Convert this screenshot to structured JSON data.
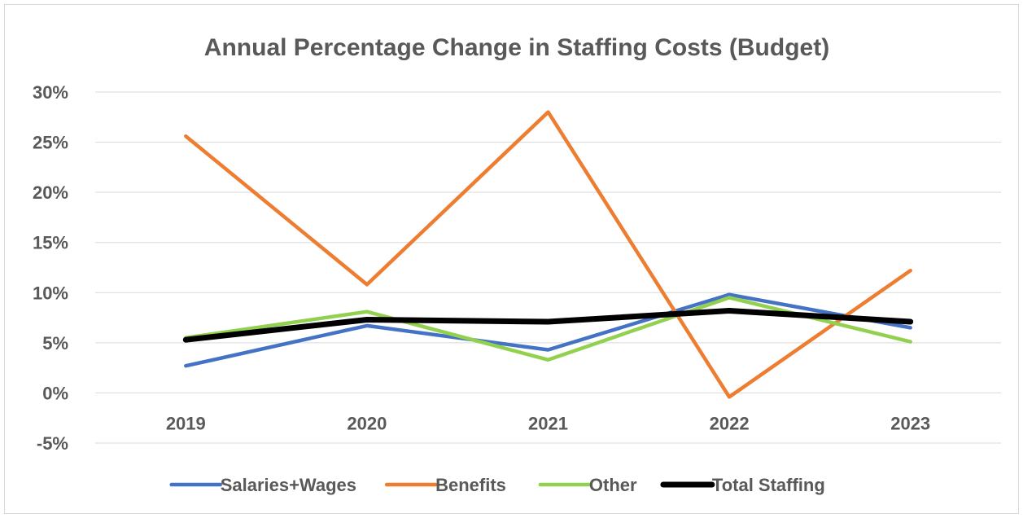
{
  "chart_data": {
    "type": "line",
    "title": "Annual Percentage Change in Staffing Costs (Budget)",
    "xlabel": "",
    "ylabel": "",
    "categories": [
      "2019",
      "2020",
      "2021",
      "2022",
      "2023"
    ],
    "ylim": [
      -5,
      30
    ],
    "ytick_values": [
      -5,
      0,
      5,
      10,
      15,
      20,
      25,
      30
    ],
    "ytick_labels": [
      "-5%",
      "0%",
      "5%",
      "10%",
      "15%",
      "20%",
      "25%",
      "30%"
    ],
    "grid": true,
    "legend_position": "bottom",
    "series": [
      {
        "name": "Salaries+Wages",
        "color": "#4472C4",
        "values": [
          2.7,
          6.7,
          4.3,
          9.8,
          6.5
        ]
      },
      {
        "name": "Benefits",
        "color": "#ED7D31",
        "values": [
          25.6,
          10.8,
          28.0,
          -0.4,
          12.2
        ]
      },
      {
        "name": "Other",
        "color": "#92D050",
        "values": [
          5.5,
          8.1,
          3.3,
          9.5,
          5.1
        ]
      },
      {
        "name": "Total Staffing",
        "color": "#000000",
        "values": [
          5.3,
          7.3,
          7.1,
          8.2,
          7.1
        ]
      }
    ]
  }
}
